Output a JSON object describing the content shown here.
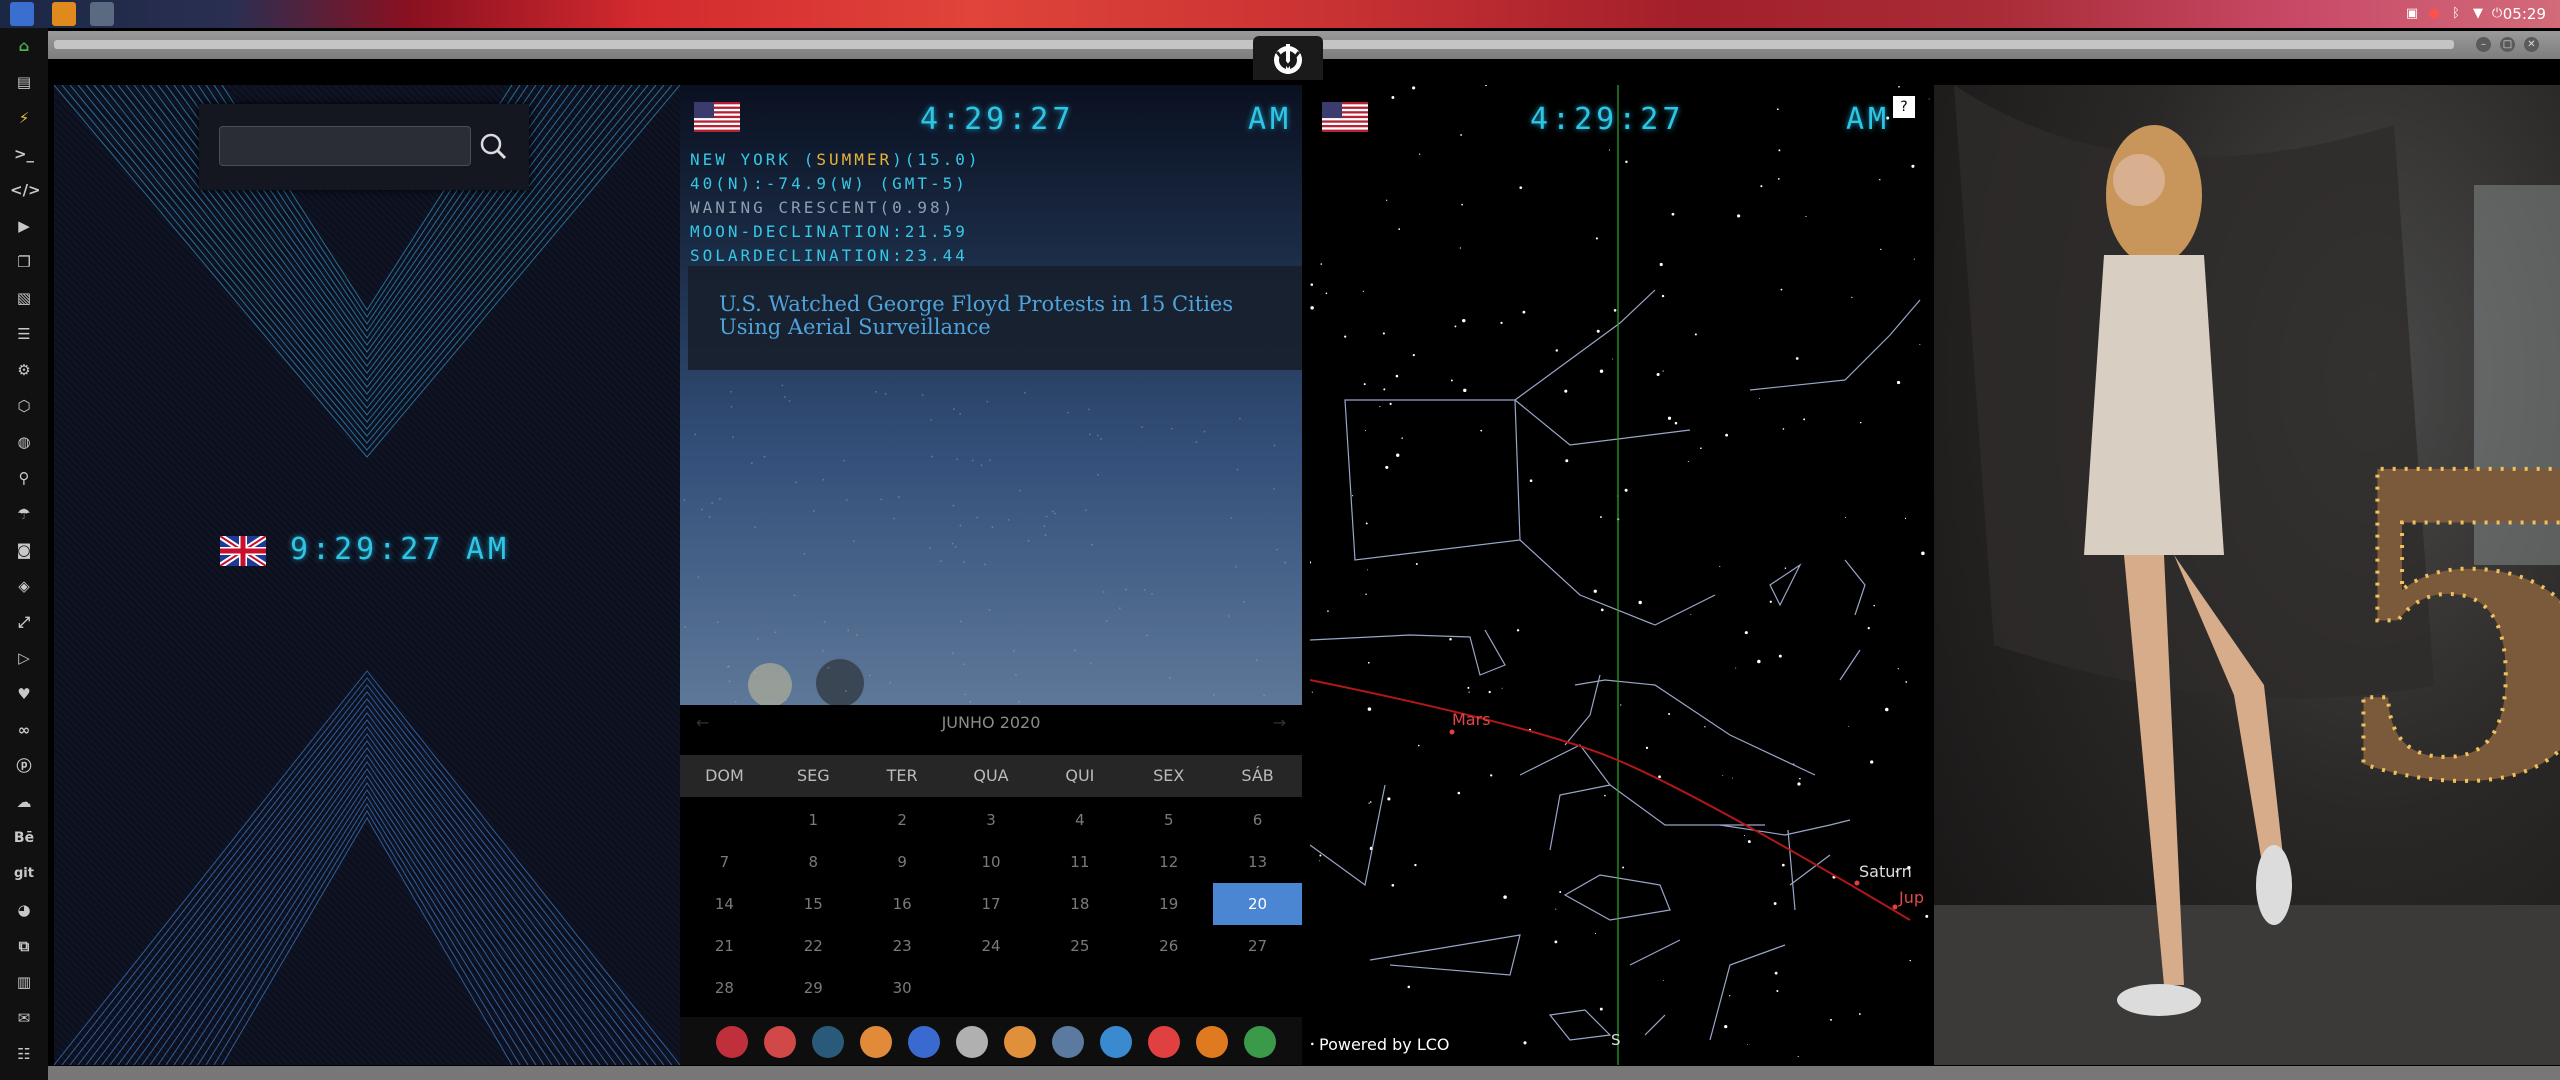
{
  "taskbar": {
    "clock": "05:29"
  },
  "panel_left": {
    "search": {
      "value": "",
      "placeholder": ""
    },
    "clock": {
      "time": "9:29:27",
      "ampm": "AM",
      "flag": "uk-flag"
    }
  },
  "panel_ny": {
    "clock": {
      "time": "4:29:27",
      "ampm": "AM",
      "flag": "us-flag"
    },
    "astro": {
      "line1_a": "NEW YORK (",
      "line1_b": "SUMMER",
      "line1_c": ")(15.0)",
      "line2": "40(N):-74.9(W) (GMT-5)",
      "line3": "WANING CRESCENT(0.98)",
      "line4": "MOON-DECLINATION:21.59",
      "line5": "SOLARDECLINATION:23.44"
    },
    "news": "U.S. Watched George Floyd Protests in 15 Cities Using Aerial Surveillance"
  },
  "calendar": {
    "month": "JUNHO 2020",
    "prev": "←",
    "next": "→",
    "weekdays": [
      "DOM",
      "SEG",
      "TER",
      "QUA",
      "QUI",
      "SEX",
      "SÁB"
    ],
    "rows": [
      [
        "",
        "1",
        "2",
        "3",
        "4",
        "5",
        "6"
      ],
      [
        "7",
        "8",
        "9",
        "10",
        "11",
        "12",
        "13"
      ],
      [
        "14",
        "15",
        "16",
        "17",
        "18",
        "19",
        "20"
      ],
      [
        "21",
        "22",
        "23",
        "24",
        "25",
        "26",
        "27"
      ],
      [
        "28",
        "29",
        "30",
        "",
        "",
        "",
        ""
      ]
    ],
    "today": "20"
  },
  "dock": {
    "icons": [
      "launcher-icon",
      "timer-icon",
      "globe-icon",
      "image-viewer-icon",
      "translate-icon",
      "news-icon",
      "search-icon",
      "clock-icon",
      "web-browser-icon",
      "calendar-icon",
      "terminal-icon",
      "yandex-icon"
    ],
    "colors": [
      "#c0303a",
      "#d04848",
      "#2a5a7a",
      "#e08a3a",
      "#3a6ad0",
      "#b0b0b0",
      "#e0903a",
      "#5a7aa0",
      "#3a8ad0",
      "#e04040",
      "#e07a20",
      "#3a9a4a"
    ]
  },
  "sky": {
    "clock": {
      "time": "4:29:27",
      "ampm": "AM",
      "flag": "us-flag"
    },
    "help": "?",
    "planets": [
      "Mars",
      "Saturn",
      "Jup"
    ],
    "direction": "S",
    "credit": "Powered by LCO"
  },
  "photo": {
    "number": "5"
  },
  "colors": {
    "digital": "#2fc6e6",
    "accent": "#4a86d2",
    "ecliptic": "#b01818"
  }
}
